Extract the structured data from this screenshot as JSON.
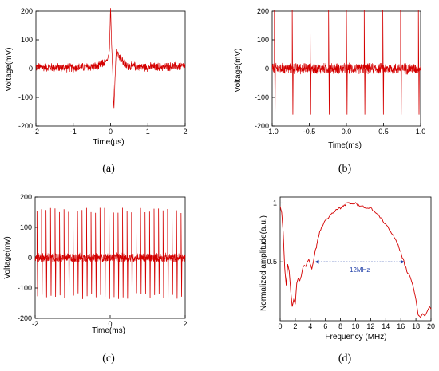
{
  "figure": {
    "panel_labels": [
      "(a)",
      "(b)",
      "(c)",
      "(d)"
    ]
  },
  "colors": {
    "signal": "#d40000",
    "annotation": "#1f3ea8",
    "axis": "#000000"
  },
  "chart_data": [
    {
      "id": "a",
      "type": "line",
      "xlabel": "Time(μs)",
      "ylabel": "Voltage(mV)",
      "xlim": [
        -2,
        2
      ],
      "ylim": [
        -200,
        200
      ],
      "xticks": [
        -2,
        -1,
        0,
        1,
        2
      ],
      "yticks": [
        -200,
        -100,
        0,
        100,
        200
      ],
      "series": [
        {
          "description_points": [
            [
              -2.0,
              5
            ],
            [
              -1.0,
              3
            ],
            [
              -0.3,
              8
            ],
            [
              -0.08,
              30
            ],
            [
              -0.03,
              60
            ],
            [
              0.0,
              215
            ],
            [
              0.03,
              80
            ],
            [
              0.06,
              -20
            ],
            [
              0.09,
              -145
            ],
            [
              0.12,
              -30
            ],
            [
              0.15,
              60
            ],
            [
              0.25,
              40
            ],
            [
              0.4,
              10
            ],
            [
              1.0,
              5
            ],
            [
              2.0,
              8
            ]
          ],
          "noise_amplitude": 18
        }
      ],
      "grid": false
    },
    {
      "id": "b",
      "type": "line",
      "xlabel": "Time(ms)",
      "ylabel": "Voltage(mV)",
      "xlim": [
        -1.0,
        1.0
      ],
      "ylim": [
        -200,
        200
      ],
      "xticks": [
        -1.0,
        -0.5,
        0.0,
        0.5,
        1.0
      ],
      "yticks": [
        -200,
        -100,
        0,
        100,
        200
      ],
      "pulse_times": [
        -0.97,
        -0.73,
        -0.49,
        -0.24,
        0.0,
        0.24,
        0.49,
        0.73,
        0.97
      ],
      "pulse_peak": 205,
      "pulse_trough": -160,
      "noise_amplitude": 22,
      "grid": false
    },
    {
      "id": "c",
      "type": "line",
      "xlabel": "Time(ms)",
      "ylabel": "Voltage(mv)",
      "xlim": [
        -2,
        2
      ],
      "ylim": [
        -200,
        200
      ],
      "xticks": [
        -2,
        0,
        2
      ],
      "yticks": [
        -200,
        -100,
        0,
        100,
        200
      ],
      "pulse_period": 0.12,
      "pulse_start": -1.95,
      "pulse_peak": 160,
      "pulse_trough": -130,
      "noise_amplitude": 18,
      "grid": false
    },
    {
      "id": "d",
      "type": "line",
      "xlabel": "Frequency (MHz)",
      "ylabel": "Normalized amplitude(a.u.)",
      "xlim": [
        0,
        20
      ],
      "ylim": [
        0,
        1.05
      ],
      "xticks": [
        0,
        2,
        4,
        6,
        8,
        10,
        12,
        14,
        16,
        18,
        20
      ],
      "yticks": [
        0.5,
        1
      ],
      "series": [
        {
          "x": [
            0.0,
            0.2,
            0.4,
            0.6,
            0.8,
            1.0,
            1.2,
            1.4,
            1.6,
            1.8,
            2.0,
            2.2,
            2.4,
            2.6,
            2.8,
            3.0,
            3.2,
            3.4,
            3.6,
            3.8,
            4.0,
            4.2,
            4.4,
            4.6,
            4.8,
            5.0,
            5.5,
            6.0,
            6.5,
            7.0,
            7.5,
            8.0,
            8.5,
            9.0,
            9.5,
            10.0,
            10.5,
            11.0,
            11.5,
            12.0,
            12.5,
            13.0,
            13.5,
            14.0,
            14.5,
            15.0,
            15.5,
            16.0,
            16.4,
            16.8,
            17.2,
            17.6,
            18.0,
            18.3,
            18.6,
            18.9,
            19.2,
            19.5,
            19.8,
            20.0
          ],
          "y": [
            0.97,
            0.92,
            0.75,
            0.45,
            0.3,
            0.48,
            0.42,
            0.25,
            0.12,
            0.18,
            0.14,
            0.32,
            0.36,
            0.34,
            0.38,
            0.45,
            0.47,
            0.46,
            0.5,
            0.52,
            0.48,
            0.44,
            0.5,
            0.58,
            0.62,
            0.7,
            0.8,
            0.85,
            0.88,
            0.92,
            0.95,
            0.96,
            0.98,
            1.0,
            0.99,
            1.0,
            0.98,
            0.97,
            0.95,
            0.96,
            0.92,
            0.9,
            0.86,
            0.82,
            0.77,
            0.72,
            0.66,
            0.58,
            0.5,
            0.42,
            0.38,
            0.3,
            0.18,
            0.05,
            0.03,
            0.06,
            0.04,
            0.08,
            0.12,
            0.1
          ]
        }
      ],
      "annotation": {
        "text": "12MHz",
        "x_from": 4.6,
        "x_to": 16.5,
        "y": 0.5
      },
      "grid": false
    }
  ]
}
